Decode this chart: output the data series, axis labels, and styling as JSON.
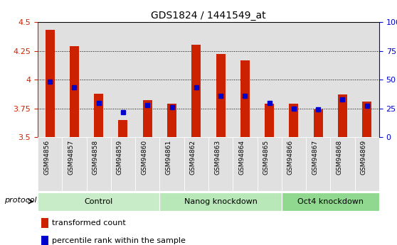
{
  "title": "GDS1824 / 1441549_at",
  "samples": [
    "GSM94856",
    "GSM94857",
    "GSM94858",
    "GSM94859",
    "GSM94860",
    "GSM94861",
    "GSM94862",
    "GSM94863",
    "GSM94864",
    "GSM94865",
    "GSM94866",
    "GSM94867",
    "GSM94868",
    "GSM94869"
  ],
  "red_values": [
    4.43,
    4.29,
    3.88,
    3.65,
    3.82,
    3.79,
    4.3,
    4.22,
    4.17,
    3.79,
    3.79,
    3.74,
    3.87,
    3.81
  ],
  "blue_percentile": [
    48,
    43,
    30,
    22,
    28,
    26,
    43,
    36,
    36,
    30,
    25,
    24,
    33,
    27
  ],
  "groups": [
    {
      "label": "Control",
      "start": 0,
      "end": 5
    },
    {
      "label": "Nanog knockdown",
      "start": 5,
      "end": 10
    },
    {
      "label": "Oct4 knockdown",
      "start": 10,
      "end": 14
    }
  ],
  "group_colors": [
    "#c8ebc8",
    "#b8e8b8",
    "#90d890"
  ],
  "ylim_left": [
    3.5,
    4.5
  ],
  "ylim_right": [
    0,
    100
  ],
  "yticks_left": [
    3.5,
    3.75,
    4.0,
    4.25,
    4.5
  ],
  "yticks_right": [
    0,
    25,
    50,
    75,
    100
  ],
  "left_axis_color": "#cc2200",
  "right_axis_color": "#0000cc",
  "bar_color": "#cc2200",
  "dot_color": "#0000cc",
  "col_bg_color": "#e0e0e0",
  "protocol_label": "protocol",
  "bar_width": 0.38,
  "legend_items": [
    {
      "color": "#cc2200",
      "label": "transformed count"
    },
    {
      "color": "#0000cc",
      "label": "percentile rank within the sample"
    }
  ]
}
